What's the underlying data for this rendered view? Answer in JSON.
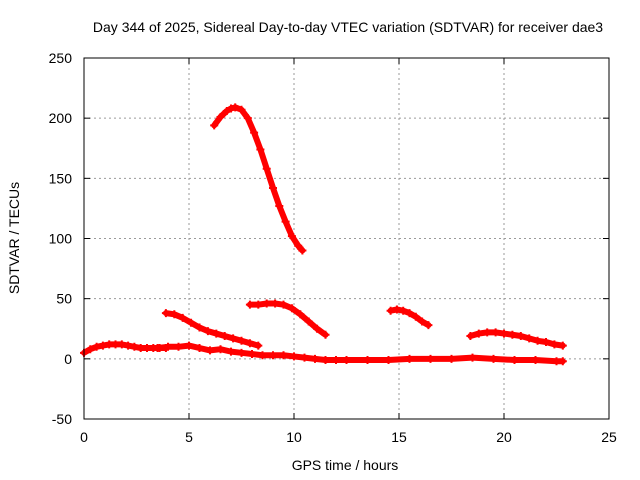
{
  "chart_data": {
    "type": "scatter",
    "title": "Day 344 of 2025, Sidereal Day-to-day VTEC variation (SDTVAR) for receiver dae3",
    "xlabel": "GPS time / hours",
    "ylabel": "SDTVAR / TECUs",
    "xlim": [
      0,
      25
    ],
    "ylim": [
      -50,
      250
    ],
    "xticks": [
      0,
      5,
      10,
      15,
      20,
      25
    ],
    "yticks": [
      -50,
      0,
      50,
      100,
      150,
      200,
      250
    ],
    "grid": true,
    "legend": "none",
    "marker": "plus",
    "series_color": "#ff0000",
    "series": [
      {
        "name": "arc-1",
        "x": [
          6.2,
          6.5,
          6.8,
          7.0,
          7.2,
          7.5,
          7.8,
          8.1,
          8.4,
          8.7,
          9.0,
          9.3,
          9.6,
          9.9,
          10.2,
          10.4
        ],
        "y": [
          194,
          201,
          206,
          208,
          209,
          207,
          200,
          188,
          174,
          158,
          142,
          127,
          114,
          102,
          94,
          90
        ]
      },
      {
        "name": "arc-2",
        "x": [
          3.9,
          4.3,
          4.7,
          5.1,
          5.5,
          5.9,
          6.3,
          6.7,
          7.1,
          7.5,
          7.9,
          8.3
        ],
        "y": [
          38,
          37,
          34,
          30,
          26,
          23,
          21,
          19,
          17,
          15,
          13,
          11
        ]
      },
      {
        "name": "arc-3",
        "x": [
          7.9,
          8.3,
          8.7,
          9.1,
          9.5,
          9.9,
          10.3,
          10.7,
          11.1,
          11.5
        ],
        "y": [
          45,
          45,
          46,
          46,
          45,
          42,
          37,
          31,
          25,
          20
        ]
      },
      {
        "name": "arc-4",
        "x": [
          14.6,
          14.9,
          15.2,
          15.5,
          15.8,
          16.1,
          16.4
        ],
        "y": [
          40,
          41,
          40,
          38,
          35,
          31,
          28
        ]
      },
      {
        "name": "arc-5",
        "x": [
          18.4,
          18.8,
          19.2,
          19.6,
          20.0,
          20.4,
          20.8,
          21.2,
          21.6,
          22.0,
          22.4,
          22.8
        ],
        "y": [
          19,
          21,
          22,
          22,
          21,
          20,
          19,
          17,
          15,
          14,
          12,
          11
        ]
      },
      {
        "name": "arc-6",
        "x": [
          0.0,
          0.3,
          0.6,
          0.9,
          1.2,
          1.5,
          1.8,
          2.1,
          2.4,
          2.7,
          3.0,
          3.3,
          3.6,
          3.9
        ],
        "y": [
          5,
          8,
          10,
          11,
          12,
          12,
          12,
          11,
          10,
          9,
          9,
          9,
          9,
          9
        ]
      },
      {
        "name": "arc-7",
        "x": [
          3.5,
          4.0,
          4.5,
          5.0,
          5.5,
          6.0,
          6.5,
          7.0,
          7.5,
          8.0,
          8.5,
          9.0,
          9.5,
          10.0,
          10.5,
          11.0,
          11.5,
          12.0
        ],
        "y": [
          9,
          10,
          10,
          11,
          9,
          7,
          8,
          6,
          5,
          4,
          3,
          3,
          3,
          2,
          1,
          0,
          -1,
          -1
        ]
      },
      {
        "name": "arc-8",
        "x": [
          11.5,
          12.5,
          13.5,
          14.5,
          15.5,
          16.5,
          17.5,
          18.5,
          19.5,
          20.5,
          21.5,
          22.5,
          22.8
        ],
        "y": [
          -1,
          -1,
          -1,
          -1,
          0,
          0,
          0,
          1,
          0,
          -1,
          -1,
          -2,
          -2
        ]
      }
    ]
  }
}
